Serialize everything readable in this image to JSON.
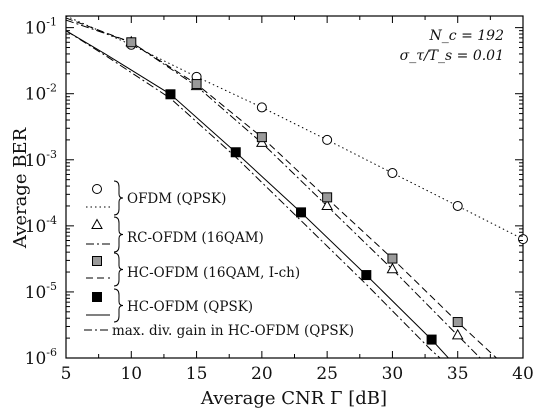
{
  "chart_data": {
    "type": "line",
    "xlabel": "Average CNR  Γ [dB]",
    "ylabel": "Average BER",
    "xlim": [
      5,
      40
    ],
    "ylim": [
      1e-06,
      0.15
    ],
    "yscale": "log",
    "x_ticks": [
      5,
      10,
      15,
      20,
      25,
      30,
      35,
      40
    ],
    "y_ticks": [
      {
        "value": 0.1,
        "base": "10",
        "exp": "-1"
      },
      {
        "value": 0.01,
        "base": "10",
        "exp": "-2"
      },
      {
        "value": 0.001,
        "base": "10",
        "exp": "-3"
      },
      {
        "value": 0.0001,
        "base": "10",
        "exp": "-4"
      },
      {
        "value": 1e-05,
        "base": "10",
        "exp": "-5"
      },
      {
        "value": 1e-06,
        "base": "10",
        "exp": "-6"
      }
    ],
    "annotations": [
      "N_c = 192",
      "σ_τ/T_s = 0.01"
    ],
    "legend_position": "bottom-left",
    "series": [
      {
        "name": "OFDM (QPSK)",
        "marker": "circle-open",
        "line": "dotted",
        "curve": {
          "x": [
            5,
            10,
            15,
            20,
            25,
            30,
            35,
            40
          ],
          "y": [
            0.15,
            0.055,
            0.018,
            0.0062,
            0.002,
            0.00063,
            0.0002,
            6.3e-05
          ]
        },
        "points": {
          "x": [
            10,
            15,
            20,
            25,
            30,
            35,
            40
          ],
          "y": [
            0.055,
            0.018,
            0.0062,
            0.002,
            0.00063,
            0.0002,
            6.3e-05
          ]
        }
      },
      {
        "name": "RC-OFDM (16QAM)",
        "marker": "triangle-open",
        "line": "dash-dot",
        "curve": {
          "x": [
            5,
            10,
            15,
            20,
            25,
            30,
            35,
            37.5
          ],
          "y": [
            0.13,
            0.06,
            0.013,
            0.0018,
            0.0002,
            2.2e-05,
            2.2e-06,
            7e-07
          ]
        },
        "points": {
          "x": [
            10,
            15,
            20,
            25,
            30,
            35
          ],
          "y": [
            0.06,
            0.013,
            0.0018,
            0.0002,
            2.2e-05,
            2.2e-06
          ]
        }
      },
      {
        "name": "HC-OFDM (16QAM, I-ch)",
        "marker": "square-gray",
        "line": "dashed",
        "curve": {
          "x": [
            5,
            10,
            15,
            20,
            25,
            30,
            35,
            38.5
          ],
          "y": [
            0.14,
            0.06,
            0.014,
            0.0022,
            0.00026,
            3.2e-05,
            3.5e-06,
            8e-07
          ]
        },
        "points": {
          "x": [
            10,
            15,
            20,
            25,
            30,
            35
          ],
          "y": [
            0.06,
            0.014,
            0.0022,
            0.00027,
            3.2e-05,
            3.5e-06
          ]
        }
      },
      {
        "name": "HC-OFDM (QPSK)",
        "marker": "square-filled",
        "line": "solid",
        "curve": {
          "x": [
            5,
            8,
            13,
            18,
            23,
            28,
            33,
            34.5
          ],
          "y": [
            0.09,
            0.04,
            0.0098,
            0.0013,
            0.00016,
            1.8e-05,
            1.9e-06,
            9e-07
          ]
        },
        "points": {
          "x": [
            13,
            18,
            23,
            28,
            33
          ],
          "y": [
            0.0098,
            0.0013,
            0.00016,
            1.8e-05,
            1.9e-06
          ]
        }
      },
      {
        "name": "max. div. gain in HC-OFDM (QPSK)",
        "marker": "none",
        "line": "dash-dot",
        "curve": {
          "x": [
            5,
            8,
            13,
            18,
            23,
            28,
            33,
            34.2
          ],
          "y": [
            0.09,
            0.038,
            0.0085,
            0.0011,
            0.00012,
            1.3e-05,
            1.3e-06,
            8e-07
          ]
        },
        "points": {
          "x": [],
          "y": []
        }
      }
    ]
  }
}
